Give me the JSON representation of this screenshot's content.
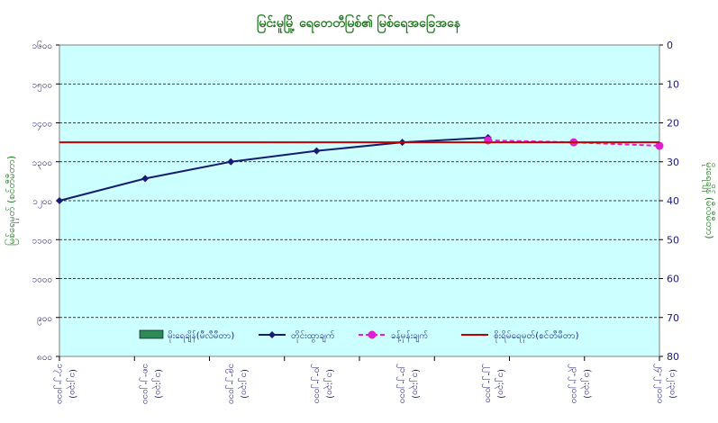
{
  "chart_data": {
    "type": "line",
    "title": "မြင်းမူမြို့ ရေ၀ောတီမြစ်၏ မြစ်ရေအခြေအနေ",
    "ylabel_left": "မြစ်ရေမှတ် (စင်တီမီတာ)",
    "ylabel_right": "မိုးရေချိန် (မီလီမီတာ)",
    "y_left_ticks": [
      "၁၆၀၀",
      "၁၅၀၀",
      "၁၄၀၀",
      "၁၃၀၀",
      "၁၂၀၀",
      "၁၁၀၀",
      "၁၀၀၀",
      "၉၀၀",
      "၈၀၀"
    ],
    "y_left_range": [
      800,
      1600
    ],
    "y_right_ticks": [
      "0",
      "10",
      "20",
      "30",
      "40",
      "50",
      "60",
      "70",
      "80"
    ],
    "y_right_range": [
      0,
      80
    ],
    "x_categories": [
      [
        "၁၇-၂-၂၀၁၀",
        "(၁၂:၃၀)"
      ],
      [
        "၁၈-၂-၂၀၁၀",
        "(၁၂:၃၀)"
      ],
      [
        "၁၉-၂-၂၀၁၀",
        "(၁၂:၃၀)"
      ],
      [
        "၂၀-၂-၂၀၁၀",
        "(၁၂:၃၀)"
      ],
      [
        "၂၁-၂-၂၀၁၀",
        "(၁၂:၃၀)"
      ],
      [
        "၂၂-၂-၂၀၁၀",
        "(၁၂:၃၀)"
      ],
      [
        "၂၃-၂-၂၀၁၀",
        "(၁၂:၃၀)"
      ],
      [
        "၂၄-၂-၂၀၁၀",
        "(၁၂:၃၀)"
      ]
    ],
    "series": [
      {
        "name": "မိုးရေချိန်(မီလီမီတာ)",
        "kind": "bar",
        "axis": "right",
        "color": "#2e8b57",
        "values": []
      },
      {
        "name": "တိုင်းထွာချက်",
        "kind": "line",
        "axis": "left",
        "color": "#1a1a6e",
        "marker": "diamond",
        "values": [
          1200,
          1257,
          1300,
          1328,
          1350,
          1362,
          null,
          null
        ]
      },
      {
        "name": "ခန့်မှန်းချက်",
        "kind": "line-dashed",
        "axis": "left",
        "color": "#e020d0",
        "marker": "circle",
        "values": [
          null,
          null,
          null,
          null,
          null,
          1355,
          1350,
          1341
        ]
      },
      {
        "name": "စိုးရိမ်ရေမှတ်(စင်တီမီတာ)",
        "kind": "hline",
        "axis": "left",
        "color": "#c00000",
        "value": 1350
      }
    ],
    "grid": true,
    "legend_position": "bottom"
  }
}
